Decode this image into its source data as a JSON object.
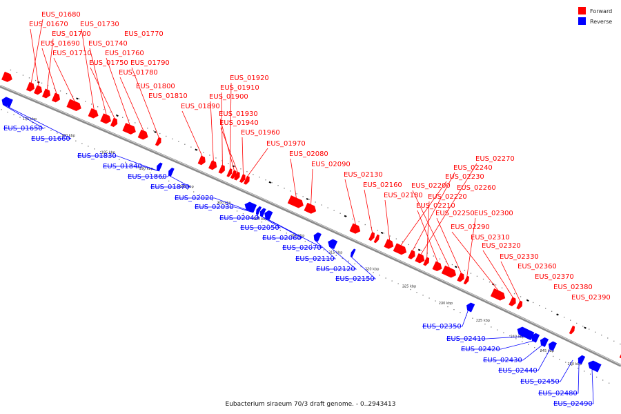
{
  "caption": "Eubacterium siraeum 70/3 draft genome. - 0..2943413",
  "legend": [
    {
      "label": "Forward",
      "color": "#ff0000"
    },
    {
      "label": "Reverse",
      "color": "#0000ff"
    }
  ],
  "ticks": [
    "175 kbp",
    "180 kbp",
    "185 kbp",
    "190 kbp",
    "195 kbp",
    "200 kbp",
    "205 kbp",
    "210 kbp",
    "215 kbp",
    "220 kbp",
    "225 kbp",
    "230 kbp",
    "235 kbp",
    "240 kbp",
    "245 kbp",
    "250 kbp"
  ],
  "forward_genes": [
    "EUS_01680",
    "EUS_01670",
    "EUS_01730",
    "EUS_01700",
    "EUS_01770",
    "EUS_01690",
    "EUS_01740",
    "EUS_01710",
    "EUS_01760",
    "EUS_01750",
    "EUS_01790",
    "EUS_01780",
    "EUS_01800",
    "EUS_01810",
    "EUS_01920",
    "EUS_01910",
    "EUS_01900",
    "EUS_01890",
    "EUS_01930",
    "EUS_01940",
    "EUS_01960",
    "EUS_01970",
    "EUS_02080",
    "EUS_02090",
    "EUS_02130",
    "EUS_02160",
    "EUS_02180",
    "EUS_02270",
    "EUS_02240",
    "EUS_02230",
    "EUS_02200",
    "EUS_02260",
    "EUS_02220",
    "EUS_02210",
    "EUS_02250",
    "EUS_02300",
    "EUS_02290",
    "EUS_02310",
    "EUS_02320",
    "EUS_02330",
    "EUS_02360",
    "EUS_02370",
    "EUS_02380",
    "EUS_02390"
  ],
  "reverse_genes": [
    "EUS_01650",
    "EUS_01660",
    "EUS_01830",
    "EUS_01840",
    "EUS_01860",
    "EUS_01870",
    "EUS_02020",
    "EUS_02030",
    "EUS_02040",
    "EUS_02050",
    "EUS_02060",
    "EUS_02070",
    "EUS_02110",
    "EUS_02120",
    "EUS_02150",
    "EUS_02350",
    "EUS_02410",
    "EUS_02420",
    "EUS_02430",
    "EUS_02440",
    "EUS_02450",
    "EUS_02480",
    "EUS_02490"
  ]
}
